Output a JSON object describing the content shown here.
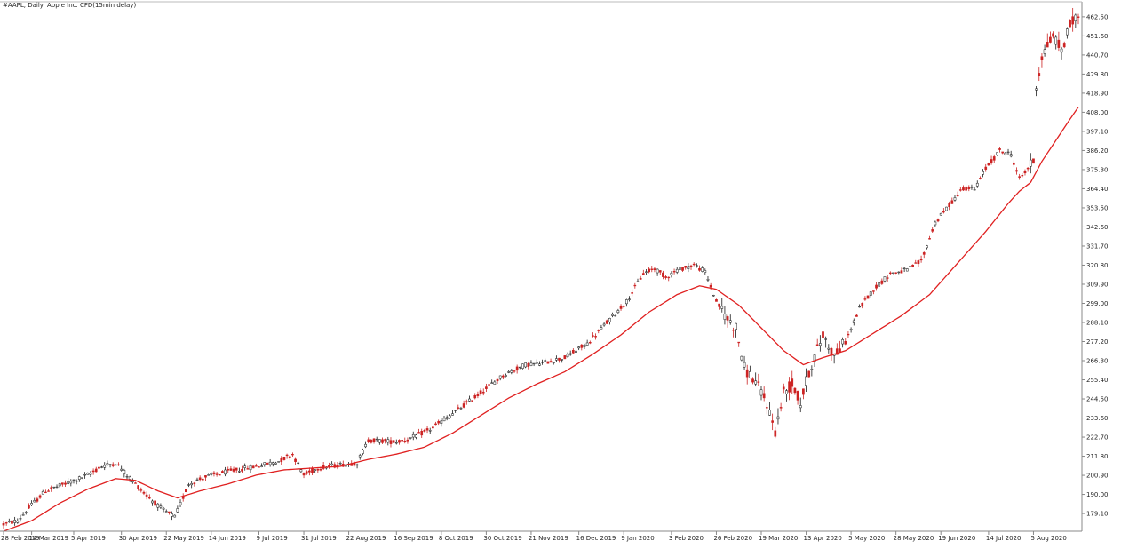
{
  "window": {
    "title": "#AAPL, Daily:  Apple Inc. CFD(15min delay)"
  },
  "chart_data": {
    "type": "candlestick",
    "title": "#AAPL, Daily:  Apple Inc. CFD(15min delay)",
    "ylim": [
      169,
      467
    ],
    "y_ticks": [
      "179.10",
      "190.00",
      "200.90",
      "211.80",
      "222.70",
      "233.60",
      "244.50",
      "255.40",
      "266.30",
      "277.20",
      "288.10",
      "299.00",
      "309.90",
      "320.80",
      "331.70",
      "342.60",
      "353.50",
      "364.40",
      "375.30",
      "386.20",
      "397.10",
      "408.00",
      "418.90",
      "429.80",
      "440.70",
      "451.60",
      "462.50"
    ],
    "x_labels": [
      {
        "label": "28 Feb 2019",
        "index": 0
      },
      {
        "label": "14 Mar 2019",
        "index": 10
      },
      {
        "label": "5 Apr 2019",
        "index": 25
      },
      {
        "label": "30 Apr 2019",
        "index": 42
      },
      {
        "label": "22 May 2019",
        "index": 58
      },
      {
        "label": "14 Jun 2019",
        "index": 74
      },
      {
        "label": "9 Jul 2019",
        "index": 91
      },
      {
        "label": "31 Jul 2019",
        "index": 107
      },
      {
        "label": "22 Aug 2019",
        "index": 123
      },
      {
        "label": "16 Sep 2019",
        "index": 140
      },
      {
        "label": "8 Oct 2019",
        "index": 156
      },
      {
        "label": "30 Oct 2019",
        "index": 172
      },
      {
        "label": "21 Nov 2019",
        "index": 188
      },
      {
        "label": "16 Dec 2019",
        "index": 205
      },
      {
        "label": "9 Jan 2020",
        "index": 221
      },
      {
        "label": "3 Feb 2020",
        "index": 238
      },
      {
        "label": "26 Feb 2020",
        "index": 254
      },
      {
        "label": "19 Mar 2020",
        "index": 270
      },
      {
        "label": "13 Apr 2020",
        "index": 286
      },
      {
        "label": "5 May 2020",
        "index": 302
      },
      {
        "label": "28 May 2020",
        "index": 318
      },
      {
        "label": "19 Jun 2020",
        "index": 334
      },
      {
        "label": "14 Jul 2020",
        "index": 351
      },
      {
        "label": "5 Aug 2020",
        "index": 367
      }
    ],
    "price_anchors": [
      {
        "i": 0,
        "v": 173
      },
      {
        "i": 5,
        "v": 175
      },
      {
        "i": 10,
        "v": 184
      },
      {
        "i": 15,
        "v": 192
      },
      {
        "i": 22,
        "v": 196
      },
      {
        "i": 30,
        "v": 201
      },
      {
        "i": 35,
        "v": 206
      },
      {
        "i": 40,
        "v": 208
      },
      {
        "i": 44,
        "v": 201
      },
      {
        "i": 50,
        "v": 191
      },
      {
        "i": 56,
        "v": 182
      },
      {
        "i": 61,
        "v": 177
      },
      {
        "i": 66,
        "v": 196
      },
      {
        "i": 72,
        "v": 200
      },
      {
        "i": 80,
        "v": 203
      },
      {
        "i": 90,
        "v": 206
      },
      {
        "i": 98,
        "v": 209
      },
      {
        "i": 103,
        "v": 213
      },
      {
        "i": 107,
        "v": 201
      },
      {
        "i": 112,
        "v": 205
      },
      {
        "i": 120,
        "v": 207
      },
      {
        "i": 126,
        "v": 208
      },
      {
        "i": 130,
        "v": 221
      },
      {
        "i": 140,
        "v": 220
      },
      {
        "i": 145,
        "v": 222
      },
      {
        "i": 152,
        "v": 227
      },
      {
        "i": 160,
        "v": 236
      },
      {
        "i": 170,
        "v": 248
      },
      {
        "i": 178,
        "v": 258
      },
      {
        "i": 186,
        "v": 264
      },
      {
        "i": 192,
        "v": 265
      },
      {
        "i": 200,
        "v": 268
      },
      {
        "i": 208,
        "v": 276
      },
      {
        "i": 215,
        "v": 288
      },
      {
        "i": 222,
        "v": 300
      },
      {
        "i": 228,
        "v": 316
      },
      {
        "i": 232,
        "v": 319
      },
      {
        "i": 236,
        "v": 314
      },
      {
        "i": 240,
        "v": 318
      },
      {
        "i": 246,
        "v": 321
      },
      {
        "i": 250,
        "v": 317
      },
      {
        "i": 254,
        "v": 300
      },
      {
        "i": 258,
        "v": 290
      },
      {
        "i": 261,
        "v": 285
      },
      {
        "i": 264,
        "v": 262
      },
      {
        "i": 268,
        "v": 254
      },
      {
        "i": 272,
        "v": 242
      },
      {
        "i": 275,
        "v": 226
      },
      {
        "i": 278,
        "v": 248
      },
      {
        "i": 281,
        "v": 253
      },
      {
        "i": 284,
        "v": 242
      },
      {
        "i": 287,
        "v": 260
      },
      {
        "i": 292,
        "v": 281
      },
      {
        "i": 296,
        "v": 269
      },
      {
        "i": 300,
        "v": 277
      },
      {
        "i": 305,
        "v": 296
      },
      {
        "i": 310,
        "v": 307
      },
      {
        "i": 316,
        "v": 316
      },
      {
        "i": 322,
        "v": 318
      },
      {
        "i": 327,
        "v": 323
      },
      {
        "i": 332,
        "v": 345
      },
      {
        "i": 337,
        "v": 355
      },
      {
        "i": 342,
        "v": 365
      },
      {
        "i": 346,
        "v": 364
      },
      {
        "i": 350,
        "v": 376
      },
      {
        "i": 355,
        "v": 386
      },
      {
        "i": 359,
        "v": 384
      },
      {
        "i": 362,
        "v": 370
      },
      {
        "i": 365,
        "v": 376
      },
      {
        "i": 367,
        "v": 380
      },
      {
        "i": 368,
        "v": 423
      },
      {
        "i": 370,
        "v": 440
      },
      {
        "i": 374,
        "v": 452
      },
      {
        "i": 377,
        "v": 443
      },
      {
        "i": 380,
        "v": 458
      },
      {
        "i": 383,
        "v": 463
      }
    ],
    "ma_anchors": [
      {
        "i": 0,
        "v": 169
      },
      {
        "i": 10,
        "v": 175
      },
      {
        "i": 20,
        "v": 185
      },
      {
        "i": 30,
        "v": 193
      },
      {
        "i": 40,
        "v": 199
      },
      {
        "i": 47,
        "v": 198
      },
      {
        "i": 55,
        "v": 192
      },
      {
        "i": 62,
        "v": 188
      },
      {
        "i": 70,
        "v": 192
      },
      {
        "i": 80,
        "v": 196
      },
      {
        "i": 90,
        "v": 201
      },
      {
        "i": 100,
        "v": 204
      },
      {
        "i": 110,
        "v": 205
      },
      {
        "i": 120,
        "v": 206
      },
      {
        "i": 130,
        "v": 210
      },
      {
        "i": 140,
        "v": 213
      },
      {
        "i": 150,
        "v": 217
      },
      {
        "i": 160,
        "v": 225
      },
      {
        "i": 170,
        "v": 235
      },
      {
        "i": 180,
        "v": 245
      },
      {
        "i": 190,
        "v": 253
      },
      {
        "i": 200,
        "v": 260
      },
      {
        "i": 210,
        "v": 270
      },
      {
        "i": 220,
        "v": 281
      },
      {
        "i": 230,
        "v": 294
      },
      {
        "i": 240,
        "v": 304
      },
      {
        "i": 248,
        "v": 309
      },
      {
        "i": 254,
        "v": 307
      },
      {
        "i": 262,
        "v": 298
      },
      {
        "i": 270,
        "v": 285
      },
      {
        "i": 278,
        "v": 272
      },
      {
        "i": 285,
        "v": 264
      },
      {
        "i": 292,
        "v": 268
      },
      {
        "i": 300,
        "v": 272
      },
      {
        "i": 310,
        "v": 282
      },
      {
        "i": 320,
        "v": 292
      },
      {
        "i": 330,
        "v": 304
      },
      {
        "i": 340,
        "v": 322
      },
      {
        "i": 350,
        "v": 340
      },
      {
        "i": 358,
        "v": 356
      },
      {
        "i": 362,
        "v": 363
      },
      {
        "i": 366,
        "v": 368
      },
      {
        "i": 370,
        "v": 380
      },
      {
        "i": 375,
        "v": 392
      },
      {
        "i": 380,
        "v": 404
      },
      {
        "i": 383,
        "v": 411
      }
    ],
    "bar_count": 384,
    "colors": {
      "bull": "#1b1b1b",
      "bear": "#cc2222",
      "ma": "#e02020",
      "axis": "#888888",
      "background": "#ffffff"
    }
  }
}
